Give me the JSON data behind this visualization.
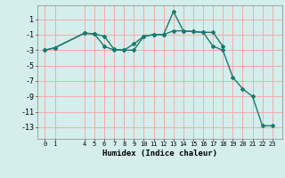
{
  "title": "",
  "xlabel": "Humidex (Indice chaleur)",
  "ylabel": "",
  "background_color": "#d4eeeb",
  "grid_color": "#f5aaaa",
  "line_color": "#1a7a6e",
  "line1_x": [
    0,
    1,
    4,
    5,
    6,
    7,
    8,
    9,
    10,
    11,
    12,
    13,
    14,
    15,
    16,
    17,
    18,
    19,
    20,
    21,
    22,
    23
  ],
  "line1_y": [
    -3.0,
    -2.7,
    -0.8,
    -0.9,
    -2.5,
    -3.0,
    -3.0,
    -2.2,
    -1.2,
    -1.0,
    -1.0,
    2.0,
    -0.5,
    -0.6,
    -0.7,
    -2.5,
    -3.0,
    -6.5,
    -8.0,
    -9.0,
    -12.8,
    -12.8
  ],
  "line2_x": [
    0,
    1,
    4,
    5,
    6,
    7,
    8,
    9,
    10,
    11,
    12,
    13,
    14,
    15,
    16,
    17,
    18
  ],
  "line2_y": [
    -3.0,
    -2.7,
    -0.8,
    -0.9,
    -1.2,
    -2.9,
    -3.0,
    -3.0,
    -1.2,
    -1.0,
    -1.0,
    -0.5,
    -0.5,
    -0.6,
    -0.7,
    -0.7,
    -2.5
  ],
  "xticks": [
    0,
    1,
    4,
    5,
    6,
    7,
    8,
    9,
    10,
    11,
    12,
    13,
    14,
    15,
    16,
    17,
    18,
    19,
    20,
    21,
    22,
    23
  ],
  "yticks": [
    1,
    -1,
    -3,
    -5,
    -7,
    -9,
    -11,
    -13
  ],
  "ylim": [
    -14.5,
    2.8
  ],
  "xlim": [
    -0.8,
    24.0
  ]
}
